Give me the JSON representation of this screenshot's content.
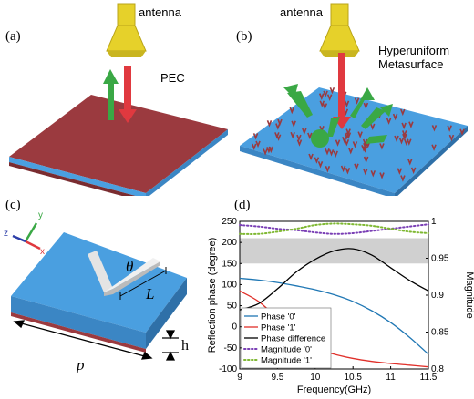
{
  "panels": {
    "a": {
      "label": "(a)",
      "antenna": "antenna",
      "material": "PEC"
    },
    "b": {
      "label": "(b)",
      "antenna": "antenna",
      "material_line1": "Hyperuniform",
      "material_line2": "Metasurface"
    },
    "c": {
      "label": "(c)",
      "theta": "θ",
      "L": "L",
      "p": "p",
      "h": "h",
      "axes": {
        "x": "x",
        "y": "y",
        "z": "z"
      }
    },
    "d": {
      "label": "(d)"
    }
  },
  "colors": {
    "pec_top": "#9b3a3f",
    "substrate": "#4a9fe0",
    "antenna": "#e6d12a",
    "arrow_red": "#e0393f",
    "arrow_green": "#3aa845",
    "phase0": "#1f77b4",
    "phase1": "#e0302a",
    "phase_diff": "#000000",
    "mag0": "#7a3fb5",
    "mag1": "#7fb832",
    "band": "#d0d0d0"
  },
  "chart_data": {
    "type": "line",
    "xlabel": "Frequency(GHz)",
    "ylabel": "Reflection phase (degree)",
    "y2label": "Magnitude",
    "xlim": [
      9,
      11.5
    ],
    "ylim": [
      -100,
      250
    ],
    "y2lim": [
      0.8,
      1.0
    ],
    "x_ticks": [
      "9",
      "9.5",
      "10",
      "10.5",
      "11",
      "11.5"
    ],
    "y_ticks": [
      "-100",
      "-50",
      "0",
      "50",
      "100",
      "150",
      "200",
      "250"
    ],
    "y2_ticks": [
      "0.8",
      "0.85",
      "0.9",
      "0.95",
      "1"
    ],
    "band": [
      150,
      210
    ],
    "legend_position": "lower-left",
    "x": [
      9,
      9.25,
      9.5,
      9.75,
      10,
      10.25,
      10.5,
      10.75,
      11,
      11.25,
      11.5
    ],
    "series": [
      {
        "name": "Phase '0'",
        "axis": "left",
        "style": "solid",
        "color": "#1f77b4",
        "values": [
          115,
          111,
          105,
          97,
          88,
          76,
          60,
          38,
          10,
          -25,
          -65
        ]
      },
      {
        "name": "Phase '1'",
        "axis": "left",
        "style": "solid",
        "color": "#e0302a",
        "values": [
          85,
          60,
          20,
          -25,
          -50,
          -65,
          -75,
          -82,
          -87,
          -91,
          -95
        ]
      },
      {
        "name": "Phase difference",
        "axis": "left",
        "style": "solid",
        "color": "#000000",
        "values": [
          40,
          55,
          90,
          130,
          160,
          180,
          185,
          170,
          140,
          110,
          85
        ]
      },
      {
        "name": "Magnitude '0'",
        "axis": "right",
        "style": "dotted",
        "color": "#7a3fb5",
        "values": [
          0.995,
          0.993,
          0.99,
          0.988,
          0.985,
          0.983,
          0.984,
          0.987,
          0.99,
          0.993,
          0.996
        ]
      },
      {
        "name": "Magnitude '1'",
        "axis": "right",
        "style": "dotted",
        "color": "#7fb832",
        "values": [
          0.983,
          0.983,
          0.986,
          0.99,
          0.995,
          0.997,
          0.996,
          0.994,
          0.99,
          0.986,
          0.984
        ]
      }
    ]
  }
}
